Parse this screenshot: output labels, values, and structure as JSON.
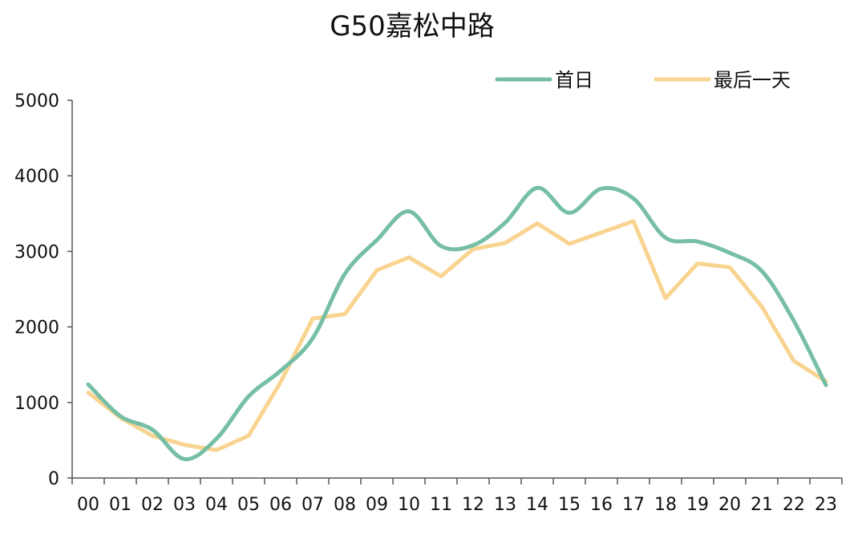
{
  "chart_data": {
    "type": "line",
    "title": "G50嘉松中路",
    "xlabel": "",
    "ylabel": "",
    "categories": [
      "00",
      "01",
      "02",
      "03",
      "04",
      "05",
      "06",
      "07",
      "08",
      "09",
      "10",
      "11",
      "12",
      "13",
      "14",
      "15",
      "16",
      "17",
      "18",
      "19",
      "20",
      "21",
      "22",
      "23"
    ],
    "ylim": [
      0,
      5000
    ],
    "yticks": [
      "0",
      "1000",
      "2000",
      "3000",
      "4000",
      "5000"
    ],
    "grid": false,
    "legend_position": "top-right",
    "series": [
      {
        "name": "首日",
        "color": "#76BFA5",
        "smooth": true,
        "values": [
          1240,
          820,
          640,
          250,
          520,
          1080,
          1420,
          1850,
          2700,
          3150,
          3530,
          3070,
          3080,
          3380,
          3840,
          3510,
          3830,
          3700,
          3180,
          3130,
          2980,
          2740,
          2080,
          1230
        ]
      },
      {
        "name": "最后一天",
        "color": "#F9D490",
        "smooth": false,
        "values": [
          1130,
          800,
          560,
          440,
          370,
          560,
          1270,
          2110,
          2170,
          2750,
          2920,
          2670,
          3030,
          3110,
          3370,
          3100,
          3250,
          3400,
          2380,
          2840,
          2790,
          2270,
          1550,
          1280
        ]
      }
    ]
  }
}
